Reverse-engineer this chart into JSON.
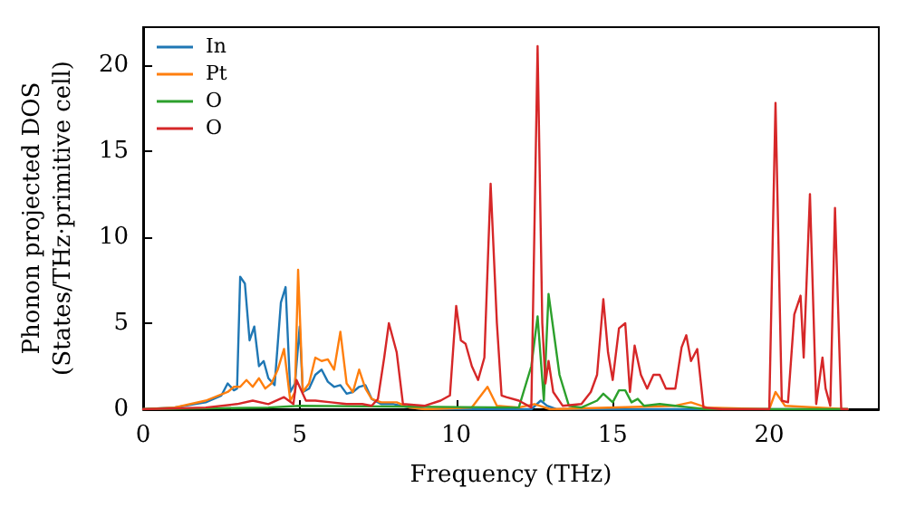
{
  "chart_data": {
    "type": "line",
    "xlabel": "Frequency (THz)",
    "ylabel": "Phonon projected DOS\n(States/THz·primitive cell)",
    "xlim": [
      0,
      23.5
    ],
    "ylim": [
      0,
      22.2
    ],
    "xticks": [
      0,
      5,
      10,
      15,
      20
    ],
    "yticks": [
      0,
      5,
      10,
      15,
      20
    ],
    "grid": false,
    "legend": "top left",
    "marker": "none",
    "line_style": "solid",
    "series": [
      {
        "name": "In",
        "color": "#1f77b4",
        "x": [
          0,
          1,
          2,
          2.5,
          2.7,
          2.9,
          3.0,
          3.1,
          3.25,
          3.4,
          3.55,
          3.7,
          3.85,
          4.0,
          4.2,
          4.4,
          4.55,
          4.7,
          4.85,
          5.0,
          5.1,
          5.3,
          5.5,
          5.7,
          5.9,
          6.1,
          6.3,
          6.5,
          6.7,
          6.9,
          7.1,
          7.3,
          7.6,
          8.0,
          8.5,
          9,
          12.4,
          12.7,
          12.9,
          13.2,
          22.5
        ],
        "values": [
          0,
          0.1,
          0.4,
          0.8,
          1.5,
          1.1,
          1.2,
          7.7,
          7.3,
          4.0,
          4.8,
          2.5,
          2.8,
          1.8,
          1.4,
          6.2,
          7.1,
          1.0,
          1.5,
          4.8,
          1.0,
          1.2,
          2.0,
          2.3,
          1.6,
          1.3,
          1.4,
          0.9,
          1.0,
          1.3,
          1.4,
          0.6,
          0.3,
          0.3,
          0.1,
          0,
          0,
          0.5,
          0.2,
          0,
          0
        ]
      },
      {
        "name": "Pt",
        "color": "#ff7f0e",
        "x": [
          0,
          1,
          2,
          2.7,
          2.9,
          3.1,
          3.3,
          3.5,
          3.7,
          3.9,
          4.1,
          4.3,
          4.5,
          4.7,
          4.85,
          4.95,
          5.1,
          5.3,
          5.5,
          5.7,
          5.9,
          6.1,
          6.3,
          6.5,
          6.7,
          6.9,
          7.1,
          7.3,
          7.6,
          8.1,
          8.5,
          9,
          10.5,
          11,
          11.3,
          12.0,
          12.5,
          13,
          17,
          17.5,
          18,
          20,
          20.2,
          20.5,
          22.5
        ],
        "values": [
          0,
          0.1,
          0.5,
          1.0,
          1.3,
          1.3,
          1.7,
          1.3,
          1.8,
          1.2,
          1.5,
          2.3,
          3.5,
          0.5,
          1.0,
          8.1,
          1.0,
          1.5,
          3.0,
          2.8,
          2.9,
          2.3,
          4.5,
          1.5,
          1.0,
          2.3,
          1.2,
          0.6,
          0.4,
          0.4,
          0.1,
          0,
          0.1,
          1.3,
          0.2,
          0.1,
          0.3,
          0,
          0.2,
          0.4,
          0.1,
          0,
          1.0,
          0.2,
          0
        ]
      },
      {
        "name": "O",
        "color": "#2ca02c",
        "x": [
          0,
          4,
          5,
          12.0,
          12.4,
          12.6,
          12.8,
          12.95,
          13.3,
          13.6,
          14,
          14.5,
          14.7,
          15,
          15.2,
          15.4,
          15.6,
          15.8,
          16,
          16.5,
          17,
          17.5,
          18,
          22.5
        ],
        "values": [
          0,
          0.1,
          0.2,
          0.1,
          2.5,
          5.4,
          0.5,
          6.7,
          2.0,
          0.2,
          0.1,
          0.5,
          0.9,
          0.4,
          1.1,
          1.1,
          0.4,
          0.6,
          0.2,
          0.3,
          0.2,
          0.1,
          0,
          0
        ]
      },
      {
        "name": "O",
        "color": "#d62728",
        "x": [
          0,
          2,
          3,
          3.5,
          4,
          4.5,
          4.8,
          4.9,
          5.2,
          5.5,
          6,
          6.5,
          7,
          7.3,
          7.5,
          7.7,
          7.85,
          8.1,
          8.3,
          9,
          9.5,
          9.8,
          10.0,
          10.15,
          10.3,
          10.5,
          10.7,
          10.9,
          11.1,
          11.3,
          11.45,
          11.6,
          12.0,
          12.4,
          12.6,
          12.75,
          12.85,
          12.95,
          13.1,
          13.4,
          14,
          14.3,
          14.5,
          14.7,
          14.85,
          15.0,
          15.2,
          15.4,
          15.55,
          15.7,
          15.9,
          16.1,
          16.3,
          16.5,
          16.7,
          17.0,
          17.2,
          17.35,
          17.5,
          17.7,
          17.9,
          18.5,
          20.0,
          20.2,
          20.4,
          20.6,
          20.8,
          21.0,
          21.1,
          21.3,
          21.5,
          21.7,
          21.8,
          21.95,
          22.1,
          22.3,
          22.5
        ],
        "values": [
          0,
          0.1,
          0.3,
          0.5,
          0.3,
          0.7,
          0.3,
          1.7,
          0.5,
          0.5,
          0.4,
          0.3,
          0.3,
          0.2,
          0.6,
          3.0,
          5.0,
          3.3,
          0.3,
          0.2,
          0.5,
          0.8,
          6.0,
          4.0,
          3.8,
          2.5,
          1.7,
          3.0,
          13.1,
          5.0,
          0.8,
          0.7,
          0.5,
          0.1,
          21.1,
          5.0,
          1.5,
          2.8,
          1.0,
          0.2,
          0.3,
          1.0,
          2.0,
          6.4,
          3.3,
          1.7,
          4.7,
          5.0,
          1.0,
          3.7,
          2.0,
          1.2,
          2.0,
          2.0,
          1.2,
          1.2,
          3.6,
          4.3,
          2.8,
          3.5,
          0.1,
          0,
          0,
          17.8,
          0.5,
          0.4,
          5.5,
          6.6,
          3.0,
          12.5,
          0.3,
          3.0,
          1.2,
          0.2,
          11.7,
          0,
          0
        ]
      }
    ]
  }
}
